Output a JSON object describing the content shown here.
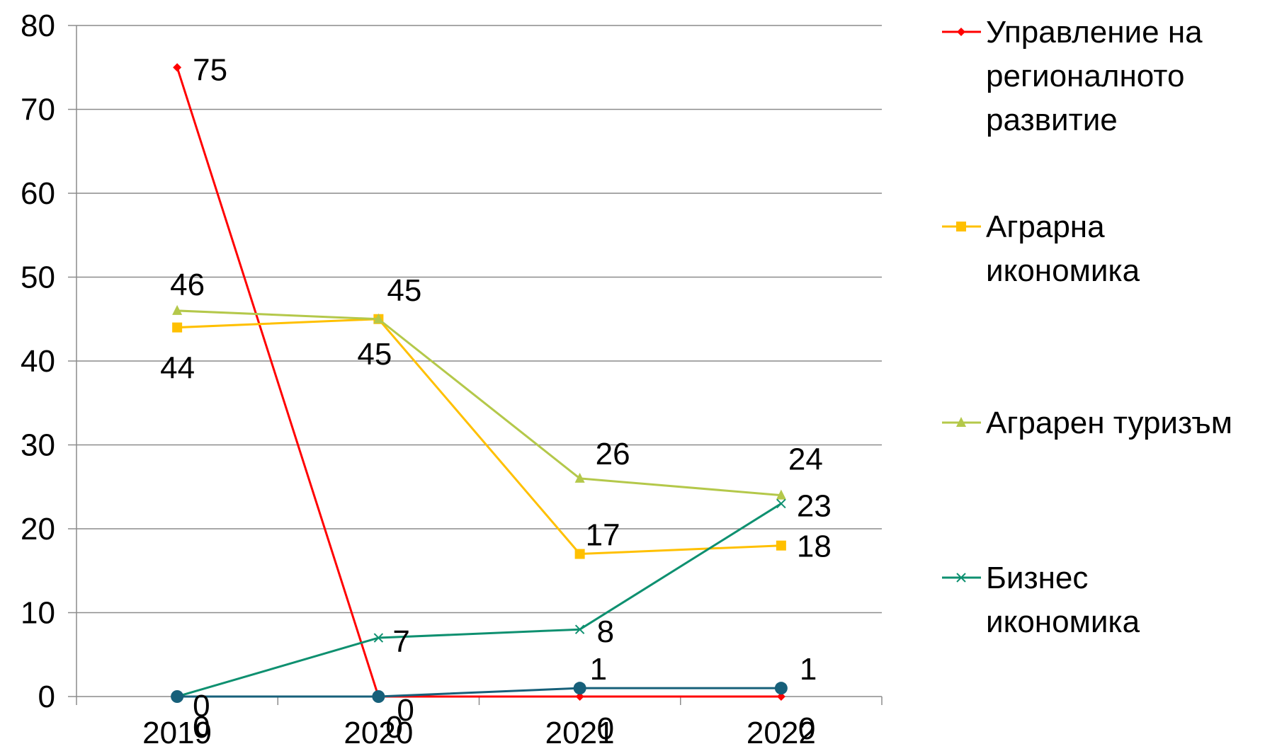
{
  "chart_data": {
    "type": "line",
    "title": "",
    "xlabel": "",
    "ylabel": "",
    "categories": [
      "2019",
      "2020",
      "2021",
      "2022"
    ],
    "ylim": [
      0,
      80
    ],
    "yticks": [
      "0",
      "10",
      "20",
      "30",
      "40",
      "50",
      "60",
      "70",
      "80"
    ],
    "grid": true,
    "legend_position": "right",
    "series": [
      {
        "name": "Управление на регионалното развитие",
        "legend_lines": [
          "Управление на",
          "регионалното",
          "развитие"
        ],
        "color": "#ff0000",
        "marker": "diamond",
        "values": [
          75,
          0,
          0,
          0
        ],
        "labels": [
          "75",
          "0",
          "0",
          "0"
        ]
      },
      {
        "name": "Аграрна икономика",
        "legend_lines": [
          "Аграрна",
          "икономика"
        ],
        "color": "#ffc000",
        "marker": "square",
        "values": [
          44,
          45,
          17,
          18
        ],
        "labels": [
          "44",
          "45",
          "17",
          "18"
        ]
      },
      {
        "name": "Аграрен туризъм",
        "legend_lines": [
          "Аграрен туризъм"
        ],
        "color": "#b4c84a",
        "marker": "triangle",
        "values": [
          46,
          45,
          26,
          24
        ],
        "labels": [
          "46",
          "45",
          "26",
          "24"
        ]
      },
      {
        "name": "Бизнес икономика",
        "legend_lines": [
          "Бизнес",
          "икономика"
        ],
        "color": "#0e9070",
        "marker": "x",
        "values": [
          0,
          7,
          8,
          23
        ],
        "labels": [
          "0",
          "7",
          "8",
          "23"
        ]
      },
      {
        "name": "",
        "legend_lines": [],
        "color": "#17607a",
        "marker": "circle",
        "values": [
          0,
          0,
          1,
          1
        ],
        "labels": [
          "0",
          "0",
          "1",
          "1"
        ]
      }
    ]
  }
}
